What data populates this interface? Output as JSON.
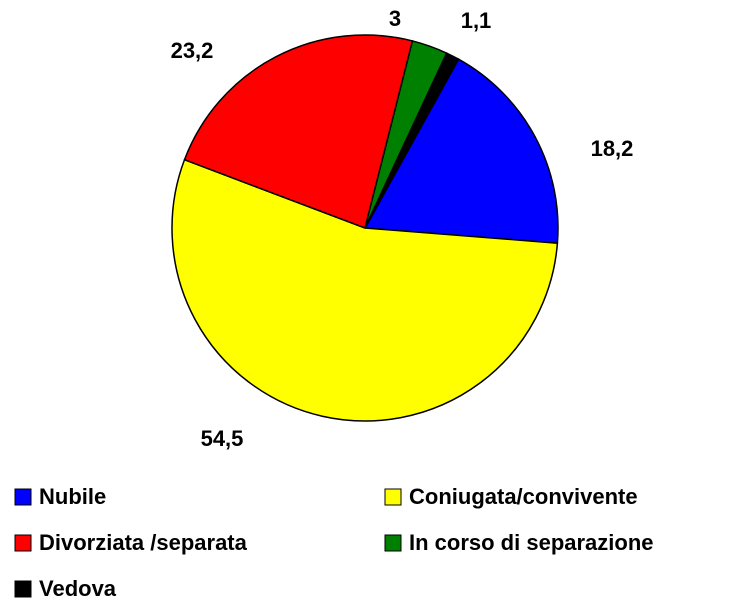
{
  "chart_data": {
    "type": "pie",
    "categories": [
      "Nubile",
      "Coniugata/convivente",
      "Divorziata /separata",
      "In corso di separazione",
      "Vedova"
    ],
    "values": [
      18.2,
      54.5,
      23.2,
      3,
      1.1
    ],
    "value_labels": [
      "18,2",
      "54,5",
      "23,2",
      "3",
      "1,1"
    ],
    "colors": [
      "#0000ff",
      "#ffff00",
      "#ff0000",
      "#008000",
      "#000000"
    ],
    "legend": "bottom"
  }
}
